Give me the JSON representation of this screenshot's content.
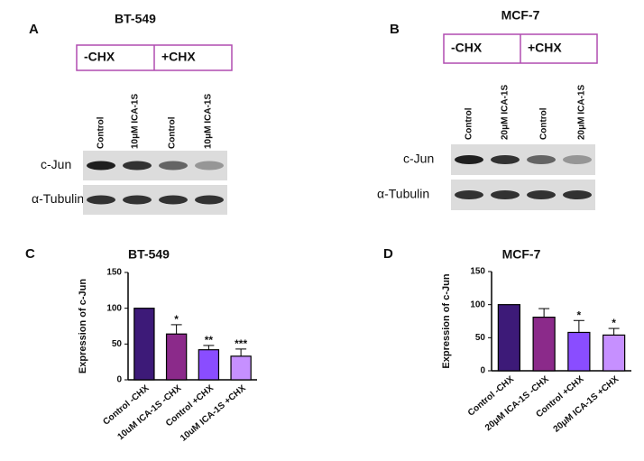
{
  "blots": [
    {
      "letter": "A",
      "title": "BT-549",
      "groups": [
        "-CHX",
        "+CHX"
      ],
      "lanes": [
        "Control",
        "10μM ICA-1S",
        "Control",
        "10μM ICA-1S"
      ],
      "rows": [
        "c-Jun",
        "α-Tubulin"
      ]
    },
    {
      "letter": "B",
      "title": "MCF-7",
      "groups": [
        "-CHX",
        "+CHX"
      ],
      "lanes": [
        "Control",
        "20μM ICA-1S",
        "Control",
        "20μM ICA-1S"
      ],
      "rows": [
        "c-Jun",
        "α-Tubulin"
      ]
    }
  ],
  "chart_data": [
    {
      "type": "bar",
      "letter": "C",
      "title": "BT-549",
      "ylabel": "Expression of c-Jun",
      "categories": [
        "Control -CHX",
        "10uM ICA-1S -CHX",
        "Control +CHX",
        "10uM ICA-1S +CHX"
      ],
      "values": [
        100,
        64,
        42,
        33
      ],
      "errors": [
        0,
        13,
        6,
        10
      ],
      "annotations": [
        null,
        "*",
        "**",
        "***"
      ],
      "colors": [
        "#3d1a78",
        "#8b2a8a",
        "#8a4dff",
        "#c690ff"
      ],
      "ylim": [
        0,
        150
      ],
      "yticks": [
        0,
        50,
        100,
        150
      ]
    },
    {
      "type": "bar",
      "letter": "D",
      "title": "MCF-7",
      "ylabel": "Expression of c-Jun",
      "categories": [
        "Control -CHX",
        "20μM ICA-1S -CHX",
        "Control +CHX",
        "20μM ICA-1S +CHX"
      ],
      "values": [
        100,
        81,
        58,
        54
      ],
      "errors": [
        0,
        13,
        18,
        10
      ],
      "annotations": [
        null,
        null,
        "*",
        "*"
      ],
      "colors": [
        "#3d1a78",
        "#8b2a8a",
        "#8a4dff",
        "#c690ff"
      ],
      "ylim": [
        0,
        150
      ],
      "yticks": [
        0,
        50,
        100,
        150
      ]
    }
  ]
}
